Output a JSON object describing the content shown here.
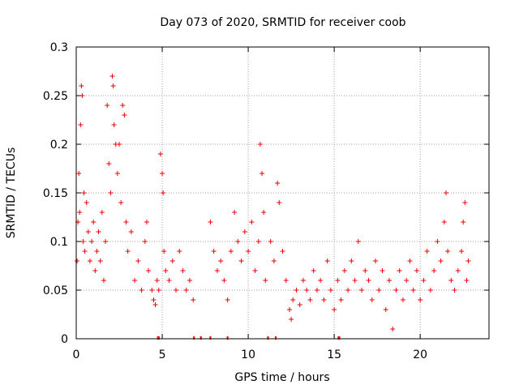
{
  "chart_data": {
    "type": "scatter",
    "title": "Day 073 of 2020, SRMTID for receiver coob",
    "xlabel": "GPS time / hours",
    "ylabel": "SRMTID / TECUs",
    "xlim": [
      0,
      24
    ],
    "ylim": [
      0,
      0.3
    ],
    "xticks": [
      0,
      5,
      10,
      15,
      20
    ],
    "xtick_labels": [
      "0",
      "5",
      "10",
      "15",
      "20"
    ],
    "yticks": [
      0,
      0.05,
      0.1,
      0.15,
      0.2,
      0.25,
      0.3
    ],
    "ytick_labels": [
      "0",
      "0.05",
      "0.1",
      "0.15",
      "0.2",
      "0.25",
      "0.3"
    ],
    "grid": true,
    "marker": "+",
    "colors": {
      "series": "#ee0000",
      "axes": "#000000",
      "grid": "#a0a0a0"
    },
    "series": [
      {
        "name": "SRMTID",
        "points": [
          [
            0.05,
            0.08
          ],
          [
            0.1,
            0.12
          ],
          [
            0.15,
            0.17
          ],
          [
            0.2,
            0.13
          ],
          [
            0.25,
            0.22
          ],
          [
            0.3,
            0.26
          ],
          [
            0.35,
            0.25
          ],
          [
            0.4,
            0.1
          ],
          [
            0.45,
            0.15
          ],
          [
            0.5,
            0.09
          ],
          [
            0.6,
            0.14
          ],
          [
            0.7,
            0.11
          ],
          [
            0.8,
            0.08
          ],
          [
            0.9,
            0.1
          ],
          [
            1.0,
            0.12
          ],
          [
            1.1,
            0.07
          ],
          [
            1.2,
            0.09
          ],
          [
            1.3,
            0.11
          ],
          [
            1.4,
            0.08
          ],
          [
            1.5,
            0.13
          ],
          [
            1.6,
            0.06
          ],
          [
            1.7,
            0.1
          ],
          [
            1.8,
            0.24
          ],
          [
            1.9,
            0.18
          ],
          [
            2.0,
            0.15
          ],
          [
            2.1,
            0.27
          ],
          [
            2.15,
            0.26
          ],
          [
            2.2,
            0.22
          ],
          [
            2.3,
            0.2
          ],
          [
            2.4,
            0.17
          ],
          [
            2.5,
            0.2
          ],
          [
            2.6,
            0.14
          ],
          [
            2.7,
            0.24
          ],
          [
            2.8,
            0.23
          ],
          [
            2.9,
            0.12
          ],
          [
            3.0,
            0.09
          ],
          [
            3.2,
            0.11
          ],
          [
            3.4,
            0.06
          ],
          [
            3.6,
            0.08
          ],
          [
            3.8,
            0.05
          ],
          [
            4.0,
            0.1
          ],
          [
            4.1,
            0.12
          ],
          [
            4.2,
            0.07
          ],
          [
            4.4,
            0.05
          ],
          [
            4.5,
            0.04
          ],
          [
            4.6,
            0.035
          ],
          [
            4.7,
            0.06
          ],
          [
            4.8,
            0.05
          ],
          [
            4.9,
            0.19
          ],
          [
            5.0,
            0.17
          ],
          [
            5.05,
            0.15
          ],
          [
            5.1,
            0.09
          ],
          [
            5.2,
            0.07
          ],
          [
            5.4,
            0.06
          ],
          [
            5.6,
            0.08
          ],
          [
            5.8,
            0.05
          ],
          [
            6.0,
            0.09
          ],
          [
            6.2,
            0.07
          ],
          [
            6.4,
            0.05
          ],
          [
            6.6,
            0.06
          ],
          [
            6.8,
            0.04
          ],
          [
            7.8,
            0.12
          ],
          [
            8.0,
            0.09
          ],
          [
            8.2,
            0.07
          ],
          [
            8.4,
            0.08
          ],
          [
            8.6,
            0.06
          ],
          [
            8.8,
            0.04
          ],
          [
            9.0,
            0.09
          ],
          [
            9.2,
            0.13
          ],
          [
            9.4,
            0.1
          ],
          [
            9.6,
            0.08
          ],
          [
            9.8,
            0.11
          ],
          [
            10.0,
            0.09
          ],
          [
            10.2,
            0.12
          ],
          [
            10.4,
            0.07
          ],
          [
            10.6,
            0.1
          ],
          [
            10.7,
            0.2
          ],
          [
            10.8,
            0.17
          ],
          [
            10.9,
            0.13
          ],
          [
            11.0,
            0.06
          ],
          [
            11.3,
            0.1
          ],
          [
            11.5,
            0.08
          ],
          [
            11.7,
            0.16
          ],
          [
            11.8,
            0.14
          ],
          [
            12.0,
            0.09
          ],
          [
            12.2,
            0.06
          ],
          [
            12.4,
            0.03
          ],
          [
            12.5,
            0.02
          ],
          [
            12.6,
            0.04
          ],
          [
            12.8,
            0.05
          ],
          [
            13.0,
            0.035
          ],
          [
            13.2,
            0.06
          ],
          [
            13.4,
            0.05
          ],
          [
            13.6,
            0.04
          ],
          [
            13.8,
            0.07
          ],
          [
            14.0,
            0.05
          ],
          [
            14.2,
            0.06
          ],
          [
            14.4,
            0.04
          ],
          [
            14.6,
            0.08
          ],
          [
            14.8,
            0.05
          ],
          [
            15.0,
            0.03
          ],
          [
            15.2,
            0.06
          ],
          [
            15.4,
            0.04
          ],
          [
            15.6,
            0.07
          ],
          [
            15.8,
            0.05
          ],
          [
            16.0,
            0.08
          ],
          [
            16.2,
            0.06
          ],
          [
            16.4,
            0.1
          ],
          [
            16.6,
            0.05
          ],
          [
            16.8,
            0.07
          ],
          [
            17.0,
            0.06
          ],
          [
            17.2,
            0.04
          ],
          [
            17.4,
            0.08
          ],
          [
            17.6,
            0.05
          ],
          [
            17.8,
            0.07
          ],
          [
            18.0,
            0.03
          ],
          [
            18.2,
            0.06
          ],
          [
            18.4,
            0.01
          ],
          [
            18.6,
            0.05
          ],
          [
            18.8,
            0.07
          ],
          [
            19.0,
            0.04
          ],
          [
            19.2,
            0.06
          ],
          [
            19.4,
            0.08
          ],
          [
            19.6,
            0.05
          ],
          [
            19.8,
            0.07
          ],
          [
            20.0,
            0.04
          ],
          [
            20.2,
            0.06
          ],
          [
            20.4,
            0.09
          ],
          [
            20.6,
            0.05
          ],
          [
            20.8,
            0.07
          ],
          [
            21.0,
            0.1
          ],
          [
            21.2,
            0.08
          ],
          [
            21.4,
            0.12
          ],
          [
            21.5,
            0.15
          ],
          [
            21.6,
            0.09
          ],
          [
            21.8,
            0.06
          ],
          [
            22.0,
            0.05
          ],
          [
            22.2,
            0.07
          ],
          [
            22.4,
            0.09
          ],
          [
            22.5,
            0.12
          ],
          [
            22.6,
            0.14
          ],
          [
            22.7,
            0.06
          ],
          [
            22.8,
            0.08
          ]
        ]
      }
    ],
    "data_gaps": [
      {
        "start": 4.7,
        "end": 4.85
      },
      {
        "start": 6.8,
        "end": 6.85
      },
      {
        "start": 7.2,
        "end": 7.3
      },
      {
        "start": 7.75,
        "end": 7.85
      },
      {
        "start": 8.75,
        "end": 8.85
      },
      {
        "start": 11.1,
        "end": 11.2
      },
      {
        "start": 11.55,
        "end": 11.65
      },
      {
        "start": 15.2,
        "end": 15.35
      }
    ]
  }
}
